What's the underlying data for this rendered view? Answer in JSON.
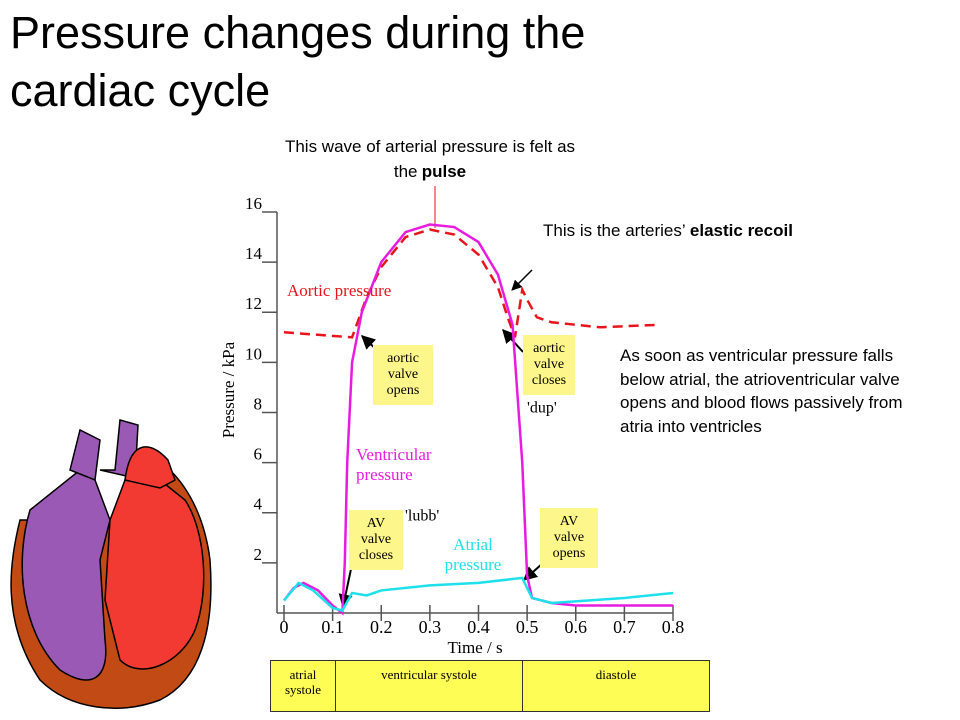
{
  "title": "Pressure changes during the cardiac cycle",
  "chart_data": {
    "type": "line",
    "xlabel": "Time / s",
    "ylabel": "Pressure / kPa",
    "xlim": [
      0,
      0.8
    ],
    "ylim": [
      0,
      16
    ],
    "xticks": [
      0,
      0.1,
      0.2,
      0.3,
      0.4,
      0.5,
      0.6,
      0.7,
      0.8
    ],
    "yticks": [
      2,
      4,
      6,
      8,
      10,
      12,
      14,
      16
    ],
    "series": [
      {
        "name": "Aortic pressure",
        "color": "#e8141b",
        "line_style": "dashed",
        "x": [
          0,
          0.14,
          0.17,
          0.2,
          0.25,
          0.3,
          0.35,
          0.4,
          0.44,
          0.46,
          0.475,
          0.49,
          0.5,
          0.52,
          0.55,
          0.65,
          0.77
        ],
        "values": [
          11.2,
          11.0,
          12.6,
          13.8,
          15.0,
          15.3,
          15.1,
          14.3,
          13.0,
          11.8,
          11.0,
          12.9,
          12.5,
          11.8,
          11.6,
          11.4,
          11.5
        ]
      },
      {
        "name": "Ventricular pressure",
        "color": "#e81ce0",
        "line_style": "solid",
        "x": [
          0,
          0.02,
          0.04,
          0.07,
          0.1,
          0.12,
          0.125,
          0.13,
          0.14,
          0.16,
          0.2,
          0.25,
          0.3,
          0.35,
          0.4,
          0.44,
          0.47,
          0.49,
          0.5,
          0.51,
          0.55,
          0.6,
          0.7,
          0.8
        ],
        "values": [
          0.5,
          1.0,
          1.2,
          0.9,
          0.3,
          0,
          2,
          6,
          10,
          12,
          14,
          15.2,
          15.5,
          15.4,
          14.8,
          13.5,
          11.5,
          6,
          1.5,
          0.6,
          0.4,
          0.3,
          0.3,
          0.3
        ]
      },
      {
        "name": "Atrial pressure",
        "color": "#1ee0ec",
        "line_style": "solid",
        "x": [
          0,
          0.03,
          0.06,
          0.1,
          0.12,
          0.14,
          0.17,
          0.2,
          0.3,
          0.4,
          0.49,
          0.51,
          0.55,
          0.7,
          0.8
        ],
        "values": [
          0.5,
          1.2,
          0.9,
          0.2,
          0.1,
          0.8,
          0.7,
          0.9,
          1.1,
          1.2,
          1.4,
          0.6,
          0.4,
          0.6,
          0.8
        ]
      }
    ],
    "valve_boxes": [
      "aortic valve opens",
      "aortic valve closes",
      "AV valve closes",
      "AV valve opens"
    ],
    "sounds": [
      "'lubb'",
      "'dup'"
    ]
  },
  "notes": {
    "pulse": {
      "text": "This wave of arterial pressure is felt as the",
      "bold": "pulse"
    },
    "recoil": {
      "text": "This is the arteries’",
      "bold": "elastic recoil"
    },
    "av": "As soon as ventricular pressure falls below atrial, the atrioventricular valve opens and blood flows passively from atria into ventricles"
  },
  "phases": [
    "atrial systole",
    "ventricular systole",
    "diastole"
  ]
}
